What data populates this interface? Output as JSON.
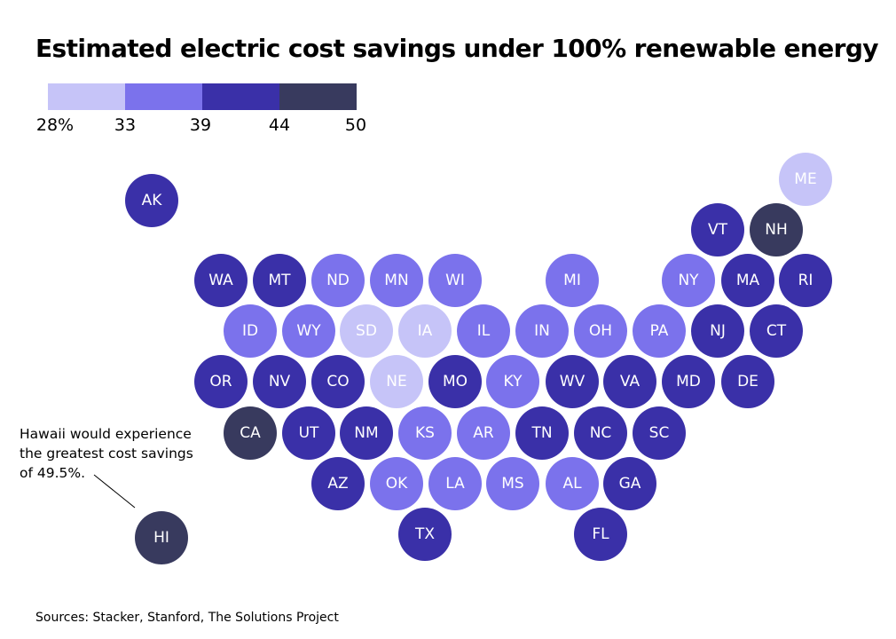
{
  "title": "Estimated electric cost savings under 100% renewable energy",
  "legend": {
    "colors": [
      "#c6c4f8",
      "#7b72ec",
      "#3a30a8",
      "#383a5e"
    ],
    "ticks": [
      "28%",
      "33",
      "39",
      "44",
      "50"
    ]
  },
  "annotation": "Hawaii would experience the greatest cost savings of 49.5%.",
  "source": "Sources: Stacker, Stanford, The Solutions Project",
  "states": [
    {
      "abbr": "AK",
      "row": 0,
      "col": 0,
      "level": 2
    },
    {
      "abbr": "ME",
      "row": -0.5,
      "col": 0,
      "level": 0
    },
    {
      "abbr": "VT",
      "row": 0.5,
      "col": 0,
      "level": 2
    },
    {
      "abbr": "NH",
      "row": 0.5,
      "col": 0,
      "level": 3
    },
    {
      "abbr": "WA",
      "row": 1,
      "col": 0,
      "level": 2
    },
    {
      "abbr": "MT",
      "row": 1,
      "col": 0,
      "level": 2
    },
    {
      "abbr": "ND",
      "row": 1,
      "col": 0,
      "level": 1
    },
    {
      "abbr": "MN",
      "row": 1,
      "col": 0,
      "level": 1
    },
    {
      "abbr": "WI",
      "row": 1,
      "col": 0,
      "level": 1
    },
    {
      "abbr": "MI",
      "row": 1,
      "col": 0,
      "level": 1
    },
    {
      "abbr": "NY",
      "row": 1,
      "col": 0,
      "level": 1
    },
    {
      "abbr": "MA",
      "row": 1,
      "col": 0,
      "level": 2
    },
    {
      "abbr": "RI",
      "row": 1,
      "col": 0,
      "level": 2
    },
    {
      "abbr": "ID",
      "row": 2,
      "col": 0,
      "level": 1
    },
    {
      "abbr": "WY",
      "row": 2,
      "col": 0,
      "level": 1
    },
    {
      "abbr": "SD",
      "row": 2,
      "col": 0,
      "level": 0
    },
    {
      "abbr": "IA",
      "row": 2,
      "col": 0,
      "level": 0
    },
    {
      "abbr": "IL",
      "row": 2,
      "col": 0,
      "level": 1
    },
    {
      "abbr": "IN",
      "row": 2,
      "col": 0,
      "level": 1
    },
    {
      "abbr": "OH",
      "row": 2,
      "col": 0,
      "level": 1
    },
    {
      "abbr": "PA",
      "row": 2,
      "col": 0,
      "level": 1
    },
    {
      "abbr": "NJ",
      "row": 2,
      "col": 0,
      "level": 2
    },
    {
      "abbr": "CT",
      "row": 2,
      "col": 0,
      "level": 2
    },
    {
      "abbr": "OR",
      "row": 3,
      "col": 0,
      "level": 2
    },
    {
      "abbr": "NV",
      "row": 3,
      "col": 0,
      "level": 2
    },
    {
      "abbr": "CO",
      "row": 3,
      "col": 0,
      "level": 2
    },
    {
      "abbr": "NE",
      "row": 3,
      "col": 0,
      "level": 0
    },
    {
      "abbr": "MO",
      "row": 3,
      "col": 0,
      "level": 2
    },
    {
      "abbr": "KY",
      "row": 3,
      "col": 0,
      "level": 1
    },
    {
      "abbr": "WV",
      "row": 3,
      "col": 0,
      "level": 2
    },
    {
      "abbr": "VA",
      "row": 3,
      "col": 0,
      "level": 2
    },
    {
      "abbr": "MD",
      "row": 3,
      "col": 0,
      "level": 2
    },
    {
      "abbr": "DE",
      "row": 3,
      "col": 0,
      "level": 2
    },
    {
      "abbr": "CA",
      "row": 4,
      "col": 0,
      "level": 3
    },
    {
      "abbr": "UT",
      "row": 4,
      "col": 0,
      "level": 2
    },
    {
      "abbr": "NM",
      "row": 4,
      "col": 0,
      "level": 2
    },
    {
      "abbr": "KS",
      "row": 4,
      "col": 0,
      "level": 1
    },
    {
      "abbr": "AR",
      "row": 4,
      "col": 0,
      "level": 1
    },
    {
      "abbr": "TN",
      "row": 4,
      "col": 0,
      "level": 2
    },
    {
      "abbr": "NC",
      "row": 4,
      "col": 0,
      "level": 2
    },
    {
      "abbr": "SC",
      "row": 4,
      "col": 0,
      "level": 2
    },
    {
      "abbr": "AZ",
      "row": 5,
      "col": 0,
      "level": 2
    },
    {
      "abbr": "OK",
      "row": 5,
      "col": 0,
      "level": 1
    },
    {
      "abbr": "LA",
      "row": 5,
      "col": 0,
      "level": 1
    },
    {
      "abbr": "MS",
      "row": 5,
      "col": 0,
      "level": 1
    },
    {
      "abbr": "AL",
      "row": 5,
      "col": 0,
      "level": 1
    },
    {
      "abbr": "GA",
      "row": 5,
      "col": 0,
      "level": 2
    },
    {
      "abbr": "TX",
      "row": 6,
      "col": 0,
      "level": 2
    },
    {
      "abbr": "FL",
      "row": 6,
      "col": 0,
      "level": 2
    },
    {
      "abbr": "HI",
      "row": 6,
      "col": 0,
      "level": 3
    }
  ]
}
